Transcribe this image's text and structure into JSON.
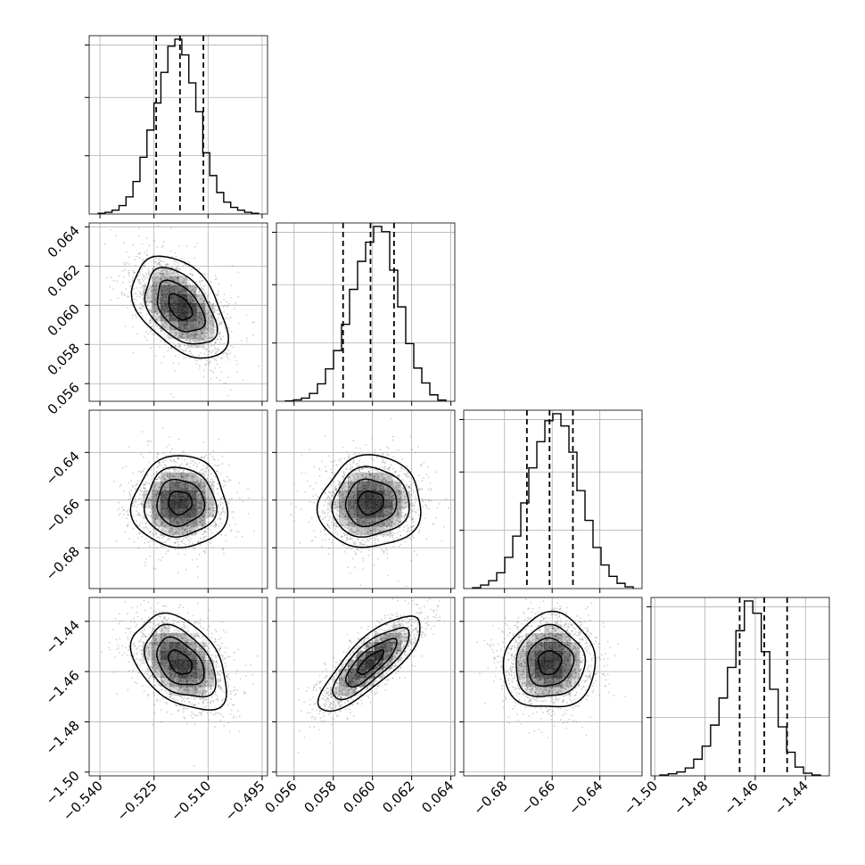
{
  "chart_data": {
    "type": "corner",
    "figure": {
      "background": "#ffffff",
      "grid": true
    },
    "params": [
      {
        "range": [
          -0.543,
          -0.4935
        ],
        "ticks": [
          -0.54,
          -0.525,
          -0.51,
          -0.495
        ],
        "tick_labels": [
          "−0.540",
          "−0.525",
          "−0.510",
          "−0.495"
        ],
        "quantiles": [
          -0.5244,
          -0.5178,
          -0.5113
        ],
        "hist_counts": [
          0.4,
          1.0,
          2.2,
          4.8,
          9.8,
          18.6,
          32.5,
          48.0,
          63.5,
          81.0,
          96.0,
          100.0,
          91.0,
          75.0,
          58.5,
          35.0,
          22.0,
          12.3,
          6.8,
          3.8,
          2.2,
          1.0,
          0.4
        ]
      },
      {
        "range": [
          0.0551,
          0.0642
        ],
        "ticks": [
          0.056,
          0.058,
          0.06,
          0.062,
          0.064
        ],
        "tick_labels": [
          "0.056",
          "0.058",
          "0.060",
          "0.062",
          "0.064"
        ],
        "quantiles": [
          0.0585,
          0.0599,
          0.0611
        ],
        "hist_counts": [
          0.2,
          0.8,
          1.8,
          4.5,
          10.0,
          18.5,
          29.0,
          44.0,
          64.0,
          80.0,
          91.0,
          100.0,
          97.0,
          75.0,
          54.0,
          33.0,
          19.0,
          10.5,
          3.7,
          0.7
        ]
      },
      {
        "range": [
          -0.6971,
          -0.6223
        ],
        "ticks": [
          -0.68,
          -0.66,
          -0.64
        ],
        "tick_labels": [
          "−0.68",
          "−0.66",
          "−0.64"
        ],
        "quantiles": [
          -0.6706,
          -0.6611,
          -0.6513
        ],
        "hist_counts": [
          0.5,
          2.0,
          4.5,
          9.0,
          17.8,
          30.0,
          49.0,
          69.0,
          84.0,
          96.0,
          100.0,
          93.0,
          78.0,
          56.0,
          39.0,
          23.5,
          13.5,
          7.0,
          3.0,
          1.0
        ]
      },
      {
        "range": [
          -1.5015,
          -1.4305
        ],
        "ticks": [
          -1.5,
          -1.48,
          -1.46,
          -1.44
        ],
        "tick_labels": [
          "−1.50",
          "−1.48",
          "−1.46",
          "−1.44"
        ],
        "quantiles": [
          -1.4662,
          -1.4564,
          -1.4473
        ],
        "hist_counts": [
          0.5,
          1.2,
          2.2,
          4.5,
          9.5,
          17.0,
          29.0,
          44.5,
          62.0,
          83.0,
          100.0,
          93.0,
          71.0,
          49.5,
          28.0,
          13.5,
          5.0,
          1.5,
          0.5
        ]
      }
    ],
    "correlations": [
      [
        1.0,
        -0.45,
        0.0,
        -0.4
      ],
      [
        -0.45,
        1.0,
        0.05,
        0.8
      ],
      [
        0.0,
        0.05,
        1.0,
        0.05
      ],
      [
        -0.4,
        0.8,
        0.05,
        1.0
      ]
    ],
    "colors": {
      "line": "#000000",
      "points": "#555555",
      "density": "#000000",
      "grid": "#b0b0b0"
    }
  }
}
